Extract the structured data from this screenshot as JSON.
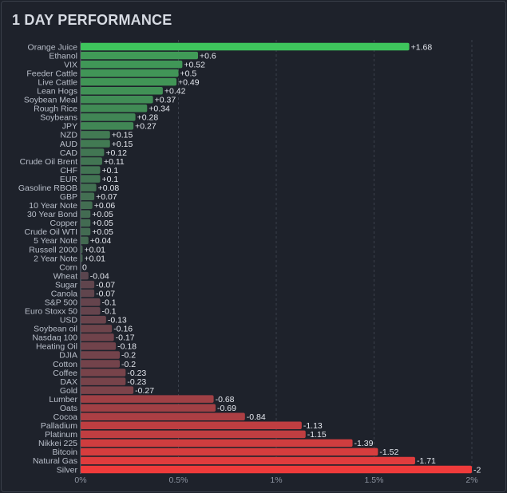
{
  "title": "1 DAY PERFORMANCE",
  "chart_data": {
    "type": "bar",
    "orientation": "horizontal",
    "title": "1 DAY PERFORMANCE",
    "xlabel": "",
    "ylabel": "",
    "xlim": [
      0,
      2
    ],
    "x_ticks": [
      0,
      0.5,
      1,
      1.5,
      2
    ],
    "x_tick_labels": [
      "0%",
      "0.5%",
      "1%",
      "1.5%",
      "2%"
    ],
    "grid": "vertical dashed",
    "color_scale": {
      "positive_max": "#3ec55c",
      "positive_min": "#44544f",
      "negative_min": "#4a4650",
      "negative_max": "#ef3b3b"
    },
    "bar_length_basis": "absolute value",
    "categories": [
      "Orange Juice",
      "Ethanol",
      "VIX",
      "Feeder Cattle",
      "Live Cattle",
      "Lean Hogs",
      "Soybean Meal",
      "Rough Rice",
      "Soybeans",
      "JPY",
      "NZD",
      "AUD",
      "CAD",
      "Crude Oil Brent",
      "CHF",
      "EUR",
      "Gasoline RBOB",
      "GBP",
      "10 Year Note",
      "30 Year Bond",
      "Copper",
      "Crude Oil WTI",
      "5 Year Note",
      "Russell 2000",
      "2 Year Note",
      "Corn",
      "Wheat",
      "Sugar",
      "Canola",
      "S&P 500",
      "Euro Stoxx 50",
      "USD",
      "Soybean oil",
      "Nasdaq 100",
      "Heating Oil",
      "DJIA",
      "Cotton",
      "Coffee",
      "DAX",
      "Gold",
      "Lumber",
      "Oats",
      "Cocoa",
      "Palladium",
      "Platinum",
      "Nikkei 225",
      "Bitcoin",
      "Natural Gas",
      "Silver"
    ],
    "values": [
      1.68,
      0.6,
      0.52,
      0.5,
      0.49,
      0.42,
      0.37,
      0.34,
      0.28,
      0.27,
      0.15,
      0.15,
      0.12,
      0.11,
      0.1,
      0.1,
      0.08,
      0.07,
      0.06,
      0.05,
      0.05,
      0.05,
      0.04,
      0.01,
      0.01,
      0,
      -0.04,
      -0.07,
      -0.07,
      -0.1,
      -0.1,
      -0.13,
      -0.16,
      -0.17,
      -0.18,
      -0.2,
      -0.2,
      -0.23,
      -0.23,
      -0.27,
      -0.68,
      -0.69,
      -0.84,
      -1.13,
      -1.15,
      -1.39,
      -1.52,
      -1.71,
      -2
    ],
    "value_labels": [
      "+1.68",
      "+0.6",
      "+0.52",
      "+0.5",
      "+0.49",
      "+0.42",
      "+0.37",
      "+0.34",
      "+0.28",
      "+0.27",
      "+0.15",
      "+0.15",
      "+0.12",
      "+0.11",
      "+0.1",
      "+0.1",
      "+0.08",
      "+0.07",
      "+0.06",
      "+0.05",
      "+0.05",
      "+0.05",
      "+0.04",
      "+0.01",
      "+0.01",
      "0",
      "-0.04",
      "-0.07",
      "-0.07",
      "-0.1",
      "-0.1",
      "-0.13",
      "-0.16",
      "-0.17",
      "-0.18",
      "-0.2",
      "-0.2",
      "-0.23",
      "-0.23",
      "-0.27",
      "-0.68",
      "-0.69",
      "-0.84",
      "-1.13",
      "-1.15",
      "-1.39",
      "-1.52",
      "-1.71",
      "-2"
    ]
  }
}
